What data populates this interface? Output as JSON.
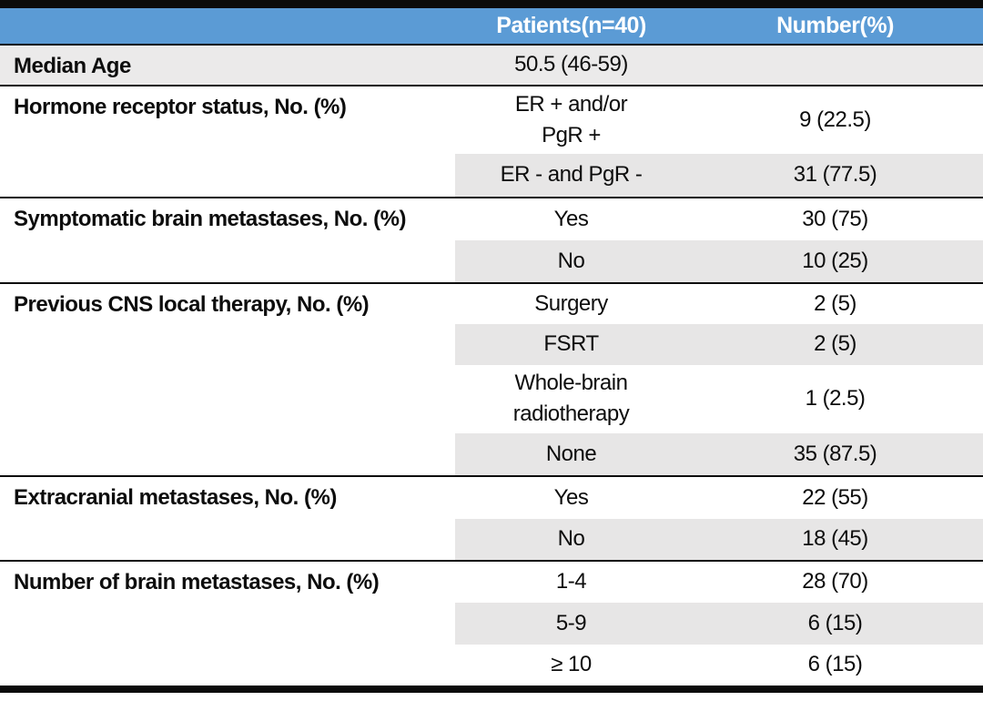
{
  "title": "Patient characteristics table",
  "colors": {
    "header_bg": "#5b9bd5",
    "header_text": "#ffffff",
    "row_shade": "#e7e6e6",
    "median_row_shade": "#ebeaea",
    "rule_color": "#0d0d0d",
    "text_color": "#0d0d0d"
  },
  "header": {
    "patients": "Patients(n=40)",
    "number": "Number(%)"
  },
  "sections": [
    {
      "label": "Median Age",
      "rows": [
        {
          "sub": "50.5 (46-59)",
          "value": ""
        }
      ]
    },
    {
      "label": "Hormone receptor status, No. (%)",
      "rows": [
        {
          "sub": "ER + and/or\nPgR +",
          "value": "9 (22.5)"
        },
        {
          "sub": "ER - and PgR -",
          "value": "31 (77.5)"
        }
      ]
    },
    {
      "label": "Symptomatic brain metastases, No. (%)",
      "rows": [
        {
          "sub": "Yes",
          "value": "30 (75)"
        },
        {
          "sub": "No",
          "value": "10 (25)"
        }
      ]
    },
    {
      "label": "Previous CNS local therapy, No. (%)",
      "rows": [
        {
          "sub": "Surgery",
          "value": "2 (5)"
        },
        {
          "sub": "FSRT",
          "value": "2 (5)"
        },
        {
          "sub": "Whole-brain\nradiotherapy",
          "value": "1 (2.5)"
        },
        {
          "sub": "None",
          "value": "35 (87.5)"
        }
      ]
    },
    {
      "label": "Extracranial metastases, No. (%)",
      "rows": [
        {
          "sub": "Yes",
          "value": "22 (55)"
        },
        {
          "sub": "No",
          "value": "18 (45)"
        }
      ]
    },
    {
      "label": "Number of brain metastases, No. (%)",
      "rows": [
        {
          "sub": "1-4",
          "value": "28 (70)"
        },
        {
          "sub": "5-9",
          "value": "6 (15)"
        },
        {
          "sub": "≥ 10",
          "value": "6 (15)"
        }
      ]
    }
  ]
}
